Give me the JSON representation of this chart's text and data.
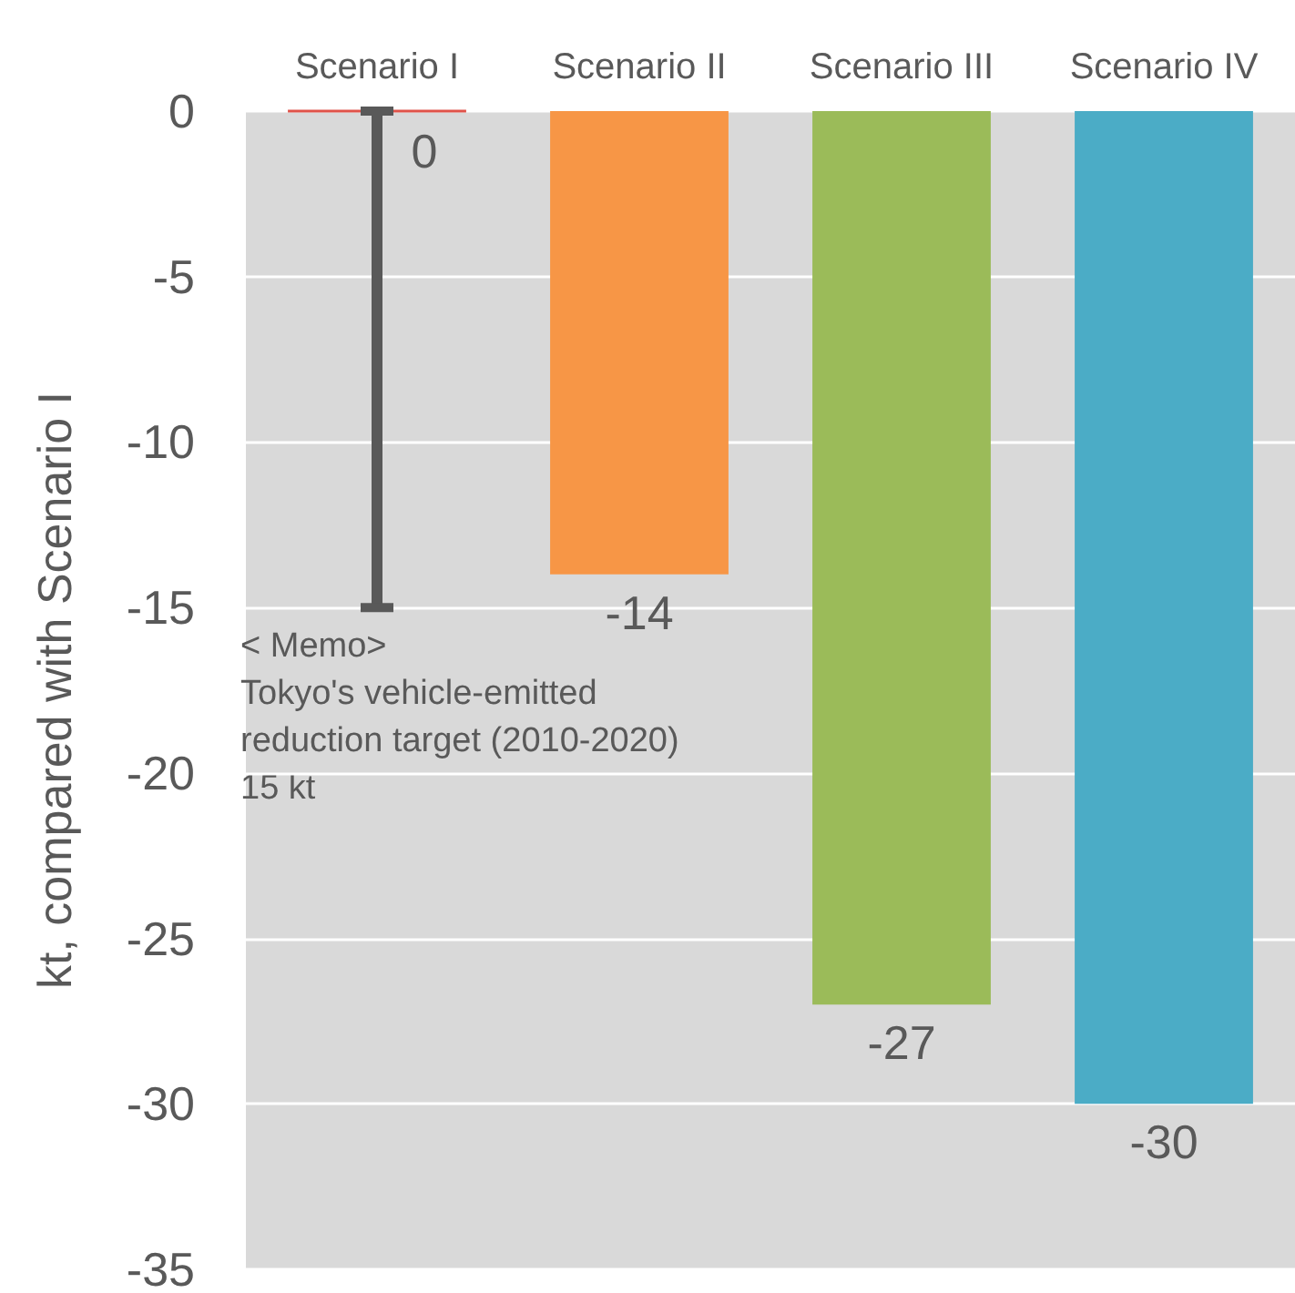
{
  "chart_data": {
    "type": "bar",
    "ylabel": "kt, compared with Scenario I",
    "categories": [
      "Scenario I",
      "Scenario II",
      "Scenario III",
      "Scenario IV"
    ],
    "values": [
      0,
      -14,
      -27,
      -30
    ],
    "colors": [
      "#e0534a",
      "#f79646",
      "#9bbb59",
      "#4bacc6"
    ],
    "ylim": [
      -35,
      0
    ],
    "yticks": [
      0,
      -5,
      -10,
      -15,
      -20,
      -25,
      -30,
      -35
    ],
    "grid": "y",
    "data_labels": true,
    "errors": [
      [
        -15,
        0
      ],
      null,
      null,
      null
    ],
    "annotations": [
      "< Memo>\nTokyo's vehicle-emitted\nreduction target (2010-2020)\n15 kt"
    ]
  }
}
